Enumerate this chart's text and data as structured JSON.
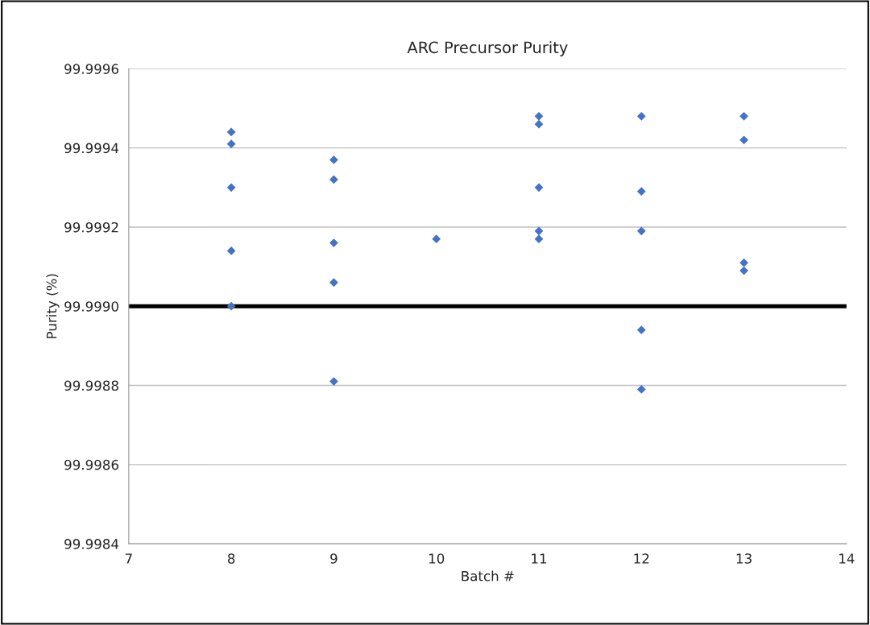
{
  "chart_data": {
    "type": "scatter",
    "title": "ARC Precursor Purity",
    "xlabel": "Batch #",
    "ylabel": "Purity (%)",
    "x": [
      8,
      8,
      8,
      8,
      8,
      9,
      9,
      9,
      9,
      9,
      10,
      11,
      11,
      11,
      11,
      11,
      12,
      12,
      12,
      12,
      12,
      13,
      13,
      13,
      13
    ],
    "values": [
      99.99944,
      99.99941,
      99.9993,
      99.99914,
      99.999,
      99.99937,
      99.99932,
      99.99916,
      99.99906,
      99.99881,
      99.99917,
      99.99948,
      99.99946,
      99.9993,
      99.99919,
      99.99917,
      99.99948,
      99.99929,
      99.99919,
      99.99894,
      99.99879,
      99.99948,
      99.99942,
      99.99911,
      99.99909
    ],
    "color": "#4472c4",
    "marker": "diamond",
    "xlim": [
      7,
      14
    ],
    "xticks": [
      7,
      8,
      9,
      10,
      11,
      12,
      13,
      14
    ],
    "ylim": [
      99.9984,
      99.9996
    ],
    "yticks": [
      99.9984,
      99.9986,
      99.9988,
      {
        "value": 99.999,
        "label": "99.9990"
      },
      99.9992,
      99.9994,
      99.9996
    ],
    "grid": "y",
    "ref_lines": [
      {
        "axis": "y",
        "value": 99.999,
        "color": "#000000",
        "line_style": "solid"
      }
    ]
  }
}
